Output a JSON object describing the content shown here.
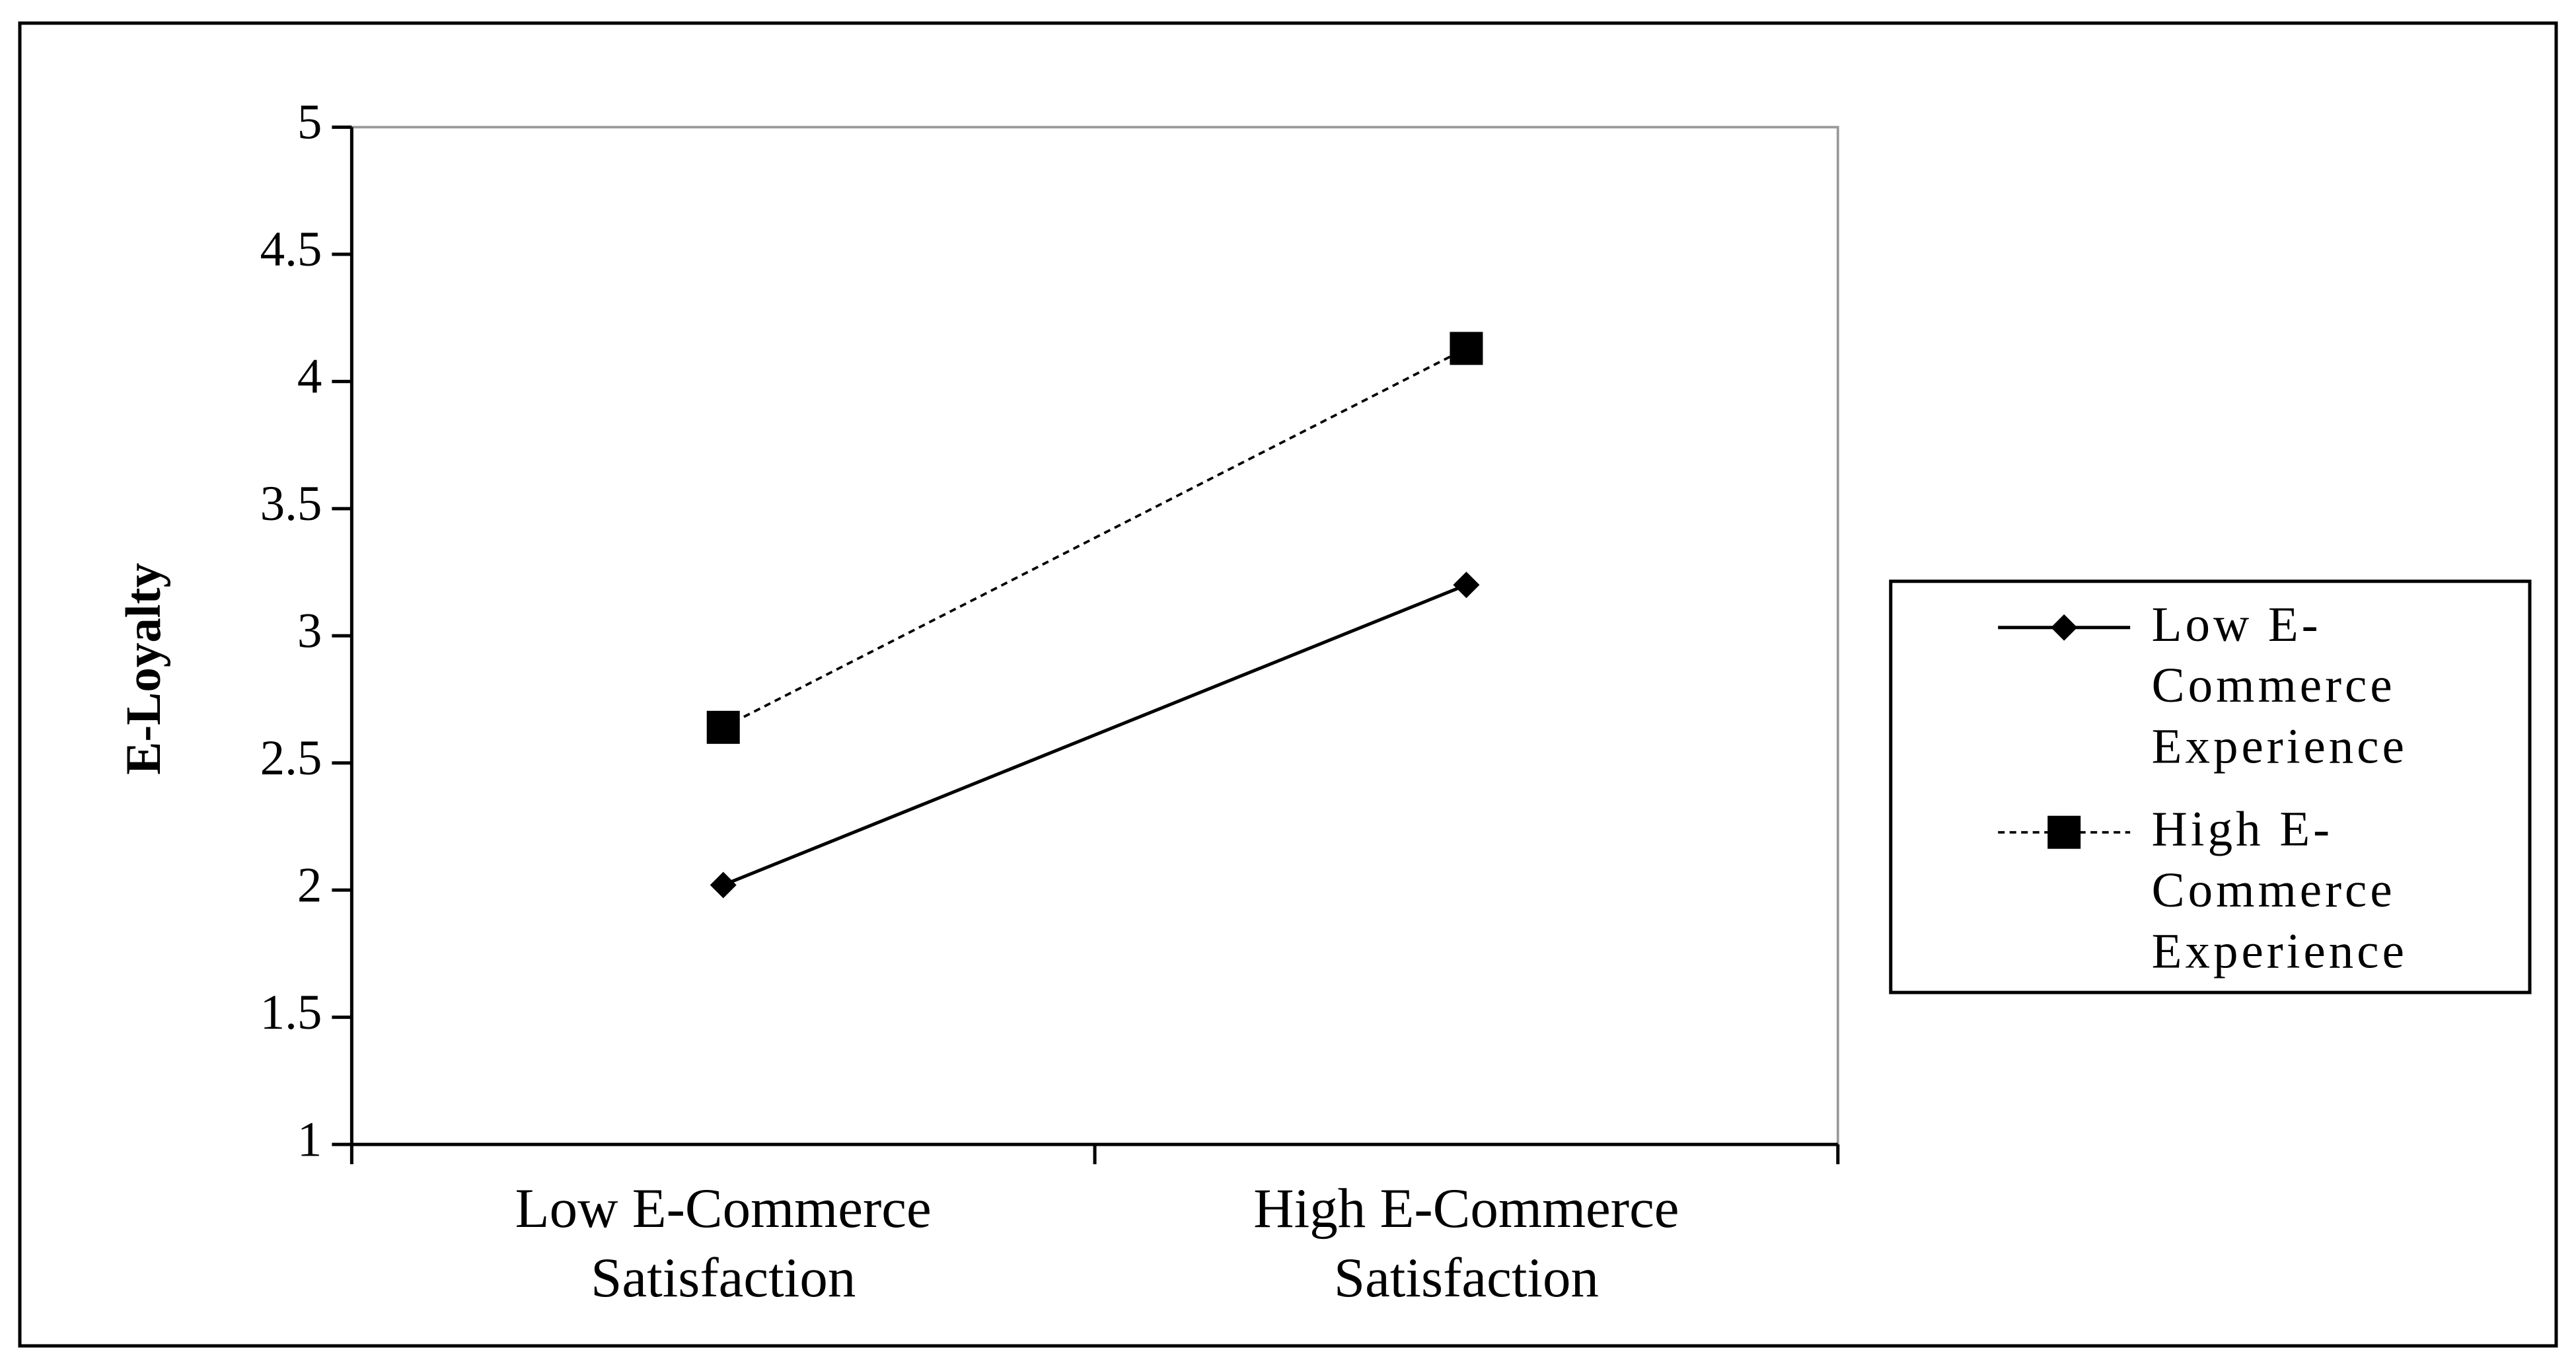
{
  "chart_data": {
    "type": "line",
    "y_label": "E-Loyalty",
    "categories": [
      "Low E-Commerce Satisfaction",
      "High E-Commerce Satisfaction"
    ],
    "series": [
      {
        "name": "Low E-Commerce Experience",
        "color": "#000000",
        "marker": "diamond",
        "dashed": false,
        "values": [
          2.02,
          3.2
        ]
      },
      {
        "name": "High E-Commerce Experience",
        "color": "#000000",
        "marker": "square",
        "dashed": true,
        "values": [
          2.64,
          4.13
        ]
      }
    ],
    "ylim": [
      1,
      5
    ],
    "yticks": [
      1,
      1.5,
      2,
      2.5,
      3,
      3.5,
      4,
      4.5,
      5
    ],
    "grid": false,
    "legend": "right"
  }
}
